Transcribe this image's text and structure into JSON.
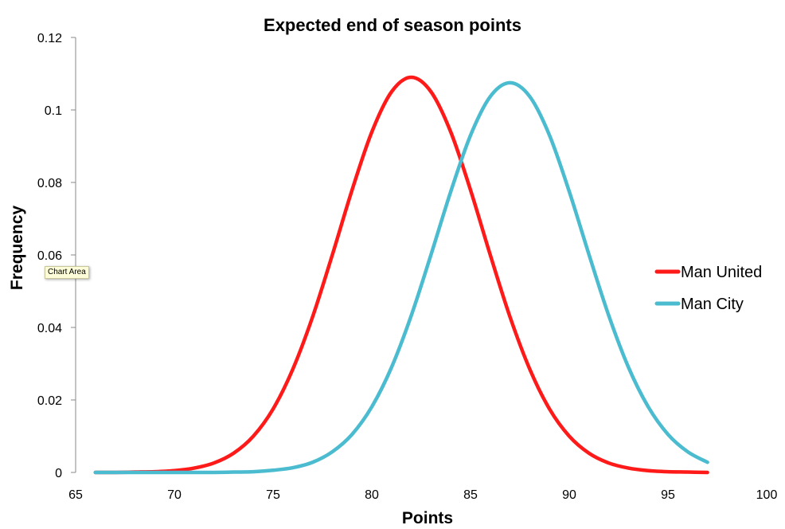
{
  "chart_data": {
    "type": "line",
    "title": "Expected end of season points",
    "xlabel": "Points",
    "ylabel": "Frequency",
    "xlim": [
      65,
      100
    ],
    "ylim": [
      0,
      0.12
    ],
    "xticks": [
      "65",
      "70",
      "75",
      "80",
      "85",
      "90",
      "95",
      "100"
    ],
    "yticks": [
      "0",
      "0.02",
      "0.04",
      "0.06",
      "0.08",
      "0.1",
      "0.12"
    ],
    "grid": false,
    "legend_position": "right",
    "x": [
      66,
      67,
      68,
      69,
      70,
      71,
      72,
      73,
      74,
      75,
      76,
      77,
      78,
      79,
      80,
      81,
      82,
      83,
      84,
      85,
      86,
      87,
      88,
      89,
      90,
      91,
      92,
      93,
      94,
      95,
      96,
      97
    ],
    "series": [
      {
        "name": "Man United",
        "color": "#ff1a1a",
        "values": [
          0,
          0,
          0.0001,
          0.0002,
          0.0005,
          0.0012,
          0.0026,
          0.0053,
          0.01,
          0.0175,
          0.0285,
          0.0429,
          0.06,
          0.0779,
          0.0939,
          0.105,
          0.109,
          0.105,
          0.0939,
          0.0779,
          0.06,
          0.0429,
          0.0285,
          0.0175,
          0.01,
          0.0053,
          0.0026,
          0.0012,
          0.0005,
          0.0002,
          0.0001,
          0
        ]
      },
      {
        "name": "Man City",
        "color": "#4bbccf",
        "values": [
          0,
          0,
          0,
          0,
          0,
          0,
          0,
          0.0001,
          0.0002,
          0.0006,
          0.0013,
          0.0028,
          0.0057,
          0.0105,
          0.0181,
          0.029,
          0.0433,
          0.0601,
          0.0775,
          0.093,
          0.1037,
          0.1075,
          0.1037,
          0.093,
          0.0775,
          0.0601,
          0.0433,
          0.029,
          0.0181,
          0.0105,
          0.0057,
          0.0028
        ]
      }
    ]
  },
  "tooltip": "Chart Area"
}
